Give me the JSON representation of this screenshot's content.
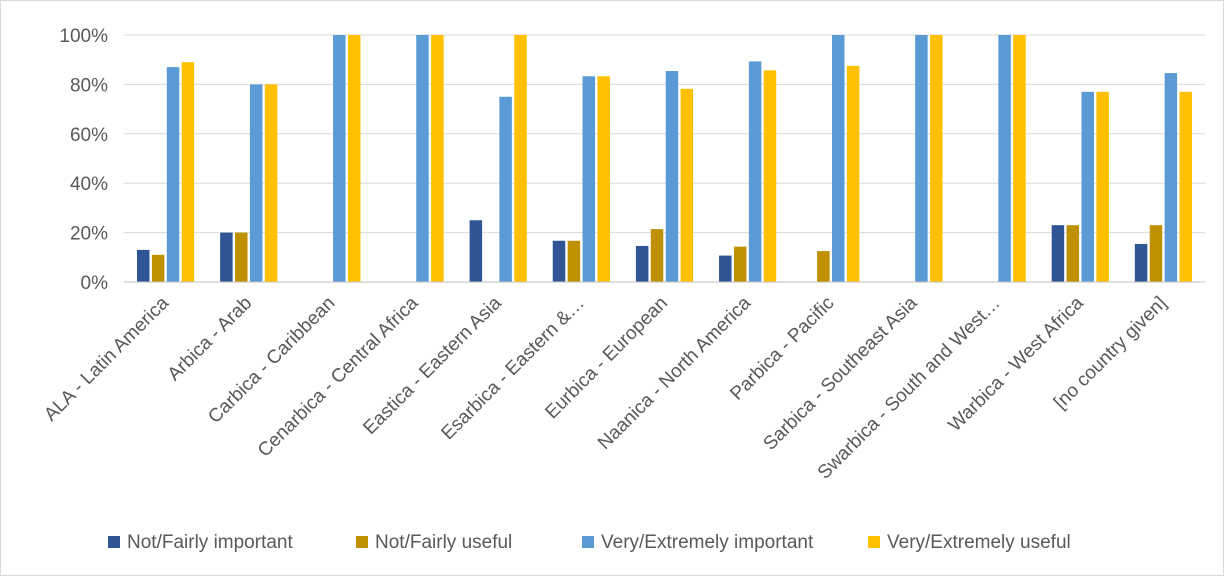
{
  "chart_data": {
    "type": "bar",
    "title": "",
    "xlabel": "",
    "ylabel": "",
    "ylim": [
      0,
      100
    ],
    "y_ticks": [
      "0%",
      "20%",
      "40%",
      "60%",
      "80%",
      "100%"
    ],
    "y_tick_values": [
      0,
      20,
      40,
      60,
      80,
      100
    ],
    "grid": true,
    "legend_position": "bottom",
    "categories": [
      "ALA - Latin America",
      "Arbica - Arab",
      "Carbica - Caribbean",
      "Cenarbica - Central Africa",
      "Eastica - Eastern Asia",
      "Esarbica - Eastern &…",
      "Eurbica - European",
      "Naanica - North America",
      "Parbica - Pacific",
      "Sarbica - Southeast Asia",
      "Swarbica - South and West…",
      "Warbica - West Africa",
      "[no country given]"
    ],
    "series": [
      {
        "name": "Not/Fairly important",
        "color": "#2f5597",
        "values": [
          13,
          20,
          0,
          0,
          25,
          16.7,
          14.6,
          10.7,
          0,
          0,
          0,
          23,
          15.4
        ]
      },
      {
        "name": "Not/Fairly useful",
        "color": "#bf9000",
        "values": [
          11,
          20,
          0,
          0,
          0,
          16.7,
          21.4,
          14.3,
          12.5,
          0,
          0,
          23,
          23
        ]
      },
      {
        "name": "Very/Extremely important",
        "color": "#5b9bd5",
        "values": [
          87,
          80,
          100,
          100,
          75,
          83.3,
          85.4,
          89.3,
          100,
          100,
          100,
          77,
          84.6
        ]
      },
      {
        "name": "Very/Extremely useful",
        "color": "#ffc000",
        "values": [
          89,
          80,
          100,
          100,
          100,
          83.3,
          78.2,
          85.7,
          87.5,
          100,
          100,
          77,
          77
        ]
      }
    ]
  }
}
